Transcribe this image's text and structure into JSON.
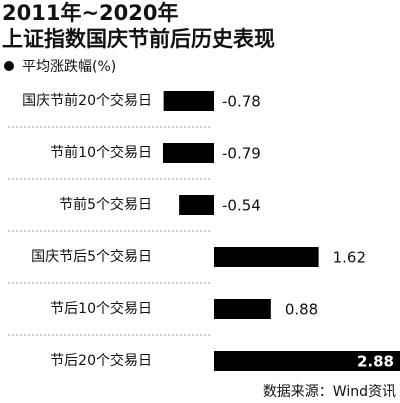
{
  "chart_data": {
    "type": "hbar",
    "title": "2011年~2020年",
    "subtitle": "上证指数国庆节前后历史表现",
    "categories": [
      "国庆节前20个交易日",
      "节前10个交易日",
      "节前5个交易日",
      "国庆节后5个交易日",
      "节后10个交易日",
      "节后20个交易日"
    ],
    "series": [
      {
        "name": "平均涨跌幅(%)",
        "color": "#000000",
        "values": [
          -0.78,
          -0.79,
          -0.54,
          1.62,
          0.88,
          2.88
        ]
      }
    ],
    "source": "数据来源：Wind资讯"
  }
}
